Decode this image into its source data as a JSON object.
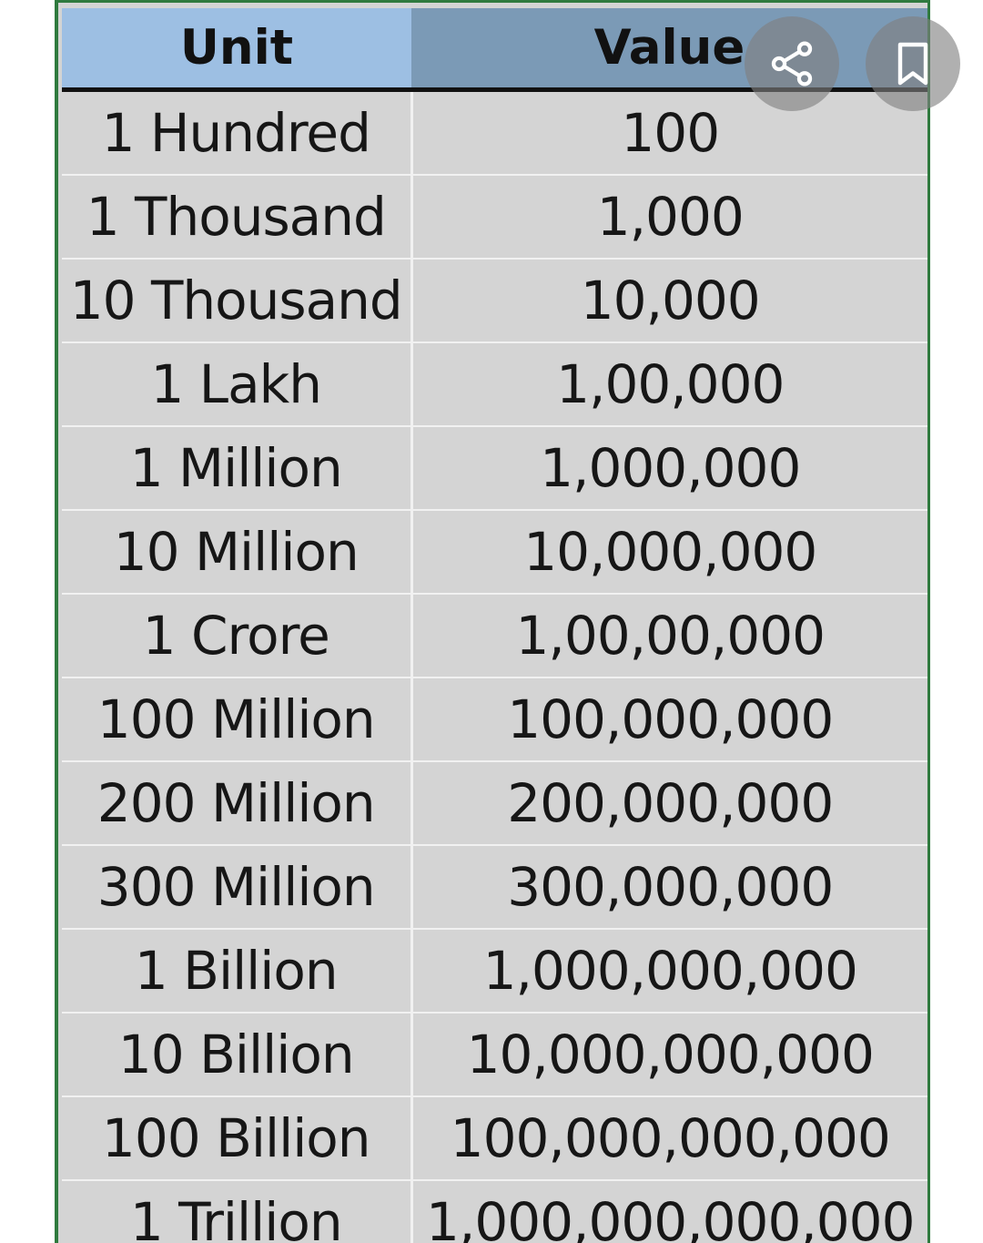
{
  "table": {
    "headers": {
      "unit": "Unit",
      "value": "Value"
    },
    "rows": [
      {
        "unit": "1 Hundred",
        "value": "100"
      },
      {
        "unit": "1 Thousand",
        "value": "1,000"
      },
      {
        "unit": "10 Thousand",
        "value": "10,000"
      },
      {
        "unit": "1 Lakh",
        "value": "1,00,000"
      },
      {
        "unit": "1 Million",
        "value": "1,000,000"
      },
      {
        "unit": "10 Million",
        "value": "10,000,000"
      },
      {
        "unit": "1 Crore",
        "value": "1,00,00,000"
      },
      {
        "unit": "100 Million",
        "value": "100,000,000"
      },
      {
        "unit": "200 Million",
        "value": "200,000,000"
      },
      {
        "unit": "300 Million",
        "value": "300,000,000"
      },
      {
        "unit": "1 Billion",
        "value": "1,000,000,000"
      },
      {
        "unit": "10 Billion",
        "value": "10,000,000,000"
      },
      {
        "unit": "100 Billion",
        "value": "100,000,000,000"
      },
      {
        "unit": "1 Trillion",
        "value": "1,000,000,000,000"
      }
    ]
  },
  "overlay": {
    "share_icon": "share-icon",
    "bookmark_icon": "bookmark-icon"
  },
  "colors": {
    "unit_header": "#9dbfe3",
    "value_header": "#7b9ab6",
    "cell_background": "#d4d4d4",
    "sheet_border": "#2f7a3e"
  }
}
